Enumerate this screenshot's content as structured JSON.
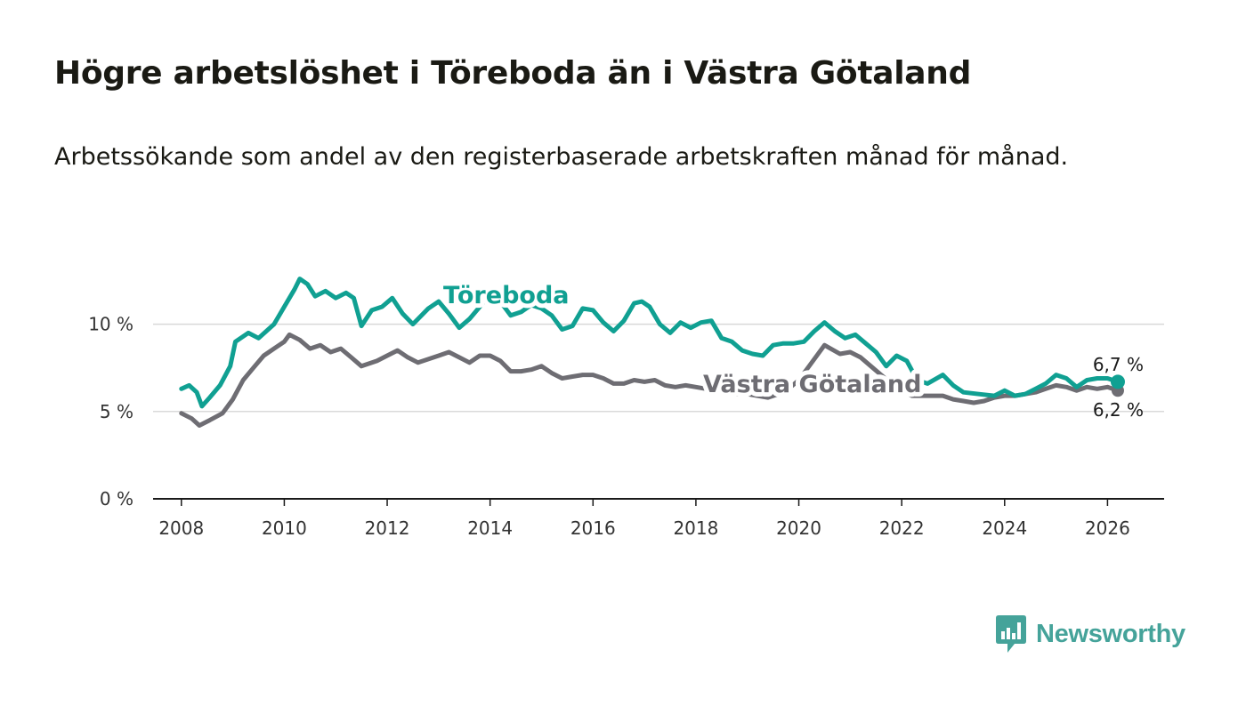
{
  "header": {
    "title": "Högre arbetslöshet i Töreboda än i Västra Götaland",
    "subtitle": "Arbetssökande som andel av den registerbaserade arbetskraften månad för månad."
  },
  "brand": {
    "name": "Newsworthy",
    "color": "#45a39a",
    "icon": "bar-chart-speech-bubble-icon"
  },
  "chart_data": {
    "type": "line",
    "title": "Högre arbetslöshet i Töreboda än i Västra Götaland",
    "subtitle": "Arbetssökande som andel av den registerbaserade arbetskraften månad för månad.",
    "xlabel": "",
    "ylabel": "",
    "xlim": [
      2007.45,
      2027.1
    ],
    "ylim": [
      0,
      13.8
    ],
    "x_ticks": [
      2008,
      2010,
      2012,
      2014,
      2016,
      2018,
      2020,
      2022,
      2024,
      2026
    ],
    "x_tick_labels": [
      "2008",
      "2010",
      "2012",
      "2014",
      "2016",
      "2018",
      "2020",
      "2022",
      "2024",
      "2026"
    ],
    "y_ticks": [
      0,
      5,
      10
    ],
    "y_tick_labels": [
      "0 %",
      "5 %",
      "10 %"
    ],
    "grid": true,
    "series": [
      {
        "name": "Töreboda",
        "color": "#10a092",
        "points": [
          [
            2008.0,
            6.3
          ],
          [
            2008.15,
            6.5
          ],
          [
            2008.3,
            6.1
          ],
          [
            2008.4,
            5.3
          ],
          [
            2008.55,
            5.8
          ],
          [
            2008.75,
            6.5
          ],
          [
            2008.95,
            7.6
          ],
          [
            2009.05,
            9.0
          ],
          [
            2009.3,
            9.5
          ],
          [
            2009.5,
            9.2
          ],
          [
            2009.8,
            10.0
          ],
          [
            2010.0,
            11.0
          ],
          [
            2010.2,
            12.0
          ],
          [
            2010.3,
            12.6
          ],
          [
            2010.45,
            12.3
          ],
          [
            2010.6,
            11.6
          ],
          [
            2010.8,
            11.9
          ],
          [
            2011.0,
            11.5
          ],
          [
            2011.2,
            11.8
          ],
          [
            2011.35,
            11.5
          ],
          [
            2011.5,
            9.9
          ],
          [
            2011.7,
            10.8
          ],
          [
            2011.9,
            11.0
          ],
          [
            2012.1,
            11.5
          ],
          [
            2012.3,
            10.6
          ],
          [
            2012.5,
            10.0
          ],
          [
            2012.8,
            10.9
          ],
          [
            2013.0,
            11.3
          ],
          [
            2013.2,
            10.6
          ],
          [
            2013.4,
            9.8
          ],
          [
            2013.6,
            10.3
          ],
          [
            2013.8,
            11.0
          ],
          [
            2014.0,
            11.8
          ],
          [
            2014.2,
            11.3
          ],
          [
            2014.4,
            10.5
          ],
          [
            2014.6,
            10.7
          ],
          [
            2014.8,
            11.1
          ],
          [
            2015.0,
            10.9
          ],
          [
            2015.2,
            10.5
          ],
          [
            2015.4,
            9.7
          ],
          [
            2015.6,
            9.9
          ],
          [
            2015.8,
            10.9
          ],
          [
            2016.0,
            10.8
          ],
          [
            2016.2,
            10.1
          ],
          [
            2016.4,
            9.6
          ],
          [
            2016.6,
            10.2
          ],
          [
            2016.8,
            11.2
          ],
          [
            2016.95,
            11.3
          ],
          [
            2017.1,
            11.0
          ],
          [
            2017.3,
            10.0
          ],
          [
            2017.5,
            9.5
          ],
          [
            2017.7,
            10.1
          ],
          [
            2017.9,
            9.8
          ],
          [
            2018.1,
            10.1
          ],
          [
            2018.3,
            10.2
          ],
          [
            2018.5,
            9.2
          ],
          [
            2018.7,
            9.0
          ],
          [
            2018.9,
            8.5
          ],
          [
            2019.1,
            8.3
          ],
          [
            2019.3,
            8.2
          ],
          [
            2019.5,
            8.8
          ],
          [
            2019.7,
            8.9
          ],
          [
            2019.9,
            8.9
          ],
          [
            2020.1,
            9.0
          ],
          [
            2020.3,
            9.6
          ],
          [
            2020.5,
            10.1
          ],
          [
            2020.7,
            9.6
          ],
          [
            2020.9,
            9.2
          ],
          [
            2021.1,
            9.4
          ],
          [
            2021.3,
            8.9
          ],
          [
            2021.5,
            8.4
          ],
          [
            2021.7,
            7.6
          ],
          [
            2021.9,
            8.2
          ],
          [
            2022.1,
            7.9
          ],
          [
            2022.3,
            6.8
          ],
          [
            2022.5,
            6.6
          ],
          [
            2022.8,
            7.1
          ],
          [
            2023.0,
            6.5
          ],
          [
            2023.2,
            6.1
          ],
          [
            2023.5,
            6.0
          ],
          [
            2023.8,
            5.9
          ],
          [
            2024.0,
            6.2
          ],
          [
            2024.2,
            5.9
          ],
          [
            2024.4,
            6.0
          ],
          [
            2024.6,
            6.3
          ],
          [
            2024.8,
            6.6
          ],
          [
            2025.0,
            7.1
          ],
          [
            2025.2,
            6.9
          ],
          [
            2025.4,
            6.4
          ],
          [
            2025.6,
            6.8
          ],
          [
            2025.8,
            6.9
          ],
          [
            2026.0,
            6.9
          ],
          [
            2026.2,
            6.7
          ]
        ]
      },
      {
        "name": "Västra Götaland",
        "color": "#6e6d73",
        "points": [
          [
            2008.0,
            4.9
          ],
          [
            2008.2,
            4.6
          ],
          [
            2008.35,
            4.2
          ],
          [
            2008.55,
            4.5
          ],
          [
            2008.8,
            4.9
          ],
          [
            2009.0,
            5.7
          ],
          [
            2009.2,
            6.8
          ],
          [
            2009.4,
            7.5
          ],
          [
            2009.6,
            8.2
          ],
          [
            2009.8,
            8.6
          ],
          [
            2010.0,
            9.0
          ],
          [
            2010.1,
            9.4
          ],
          [
            2010.3,
            9.1
          ],
          [
            2010.5,
            8.6
          ],
          [
            2010.7,
            8.8
          ],
          [
            2010.9,
            8.4
          ],
          [
            2011.1,
            8.6
          ],
          [
            2011.3,
            8.1
          ],
          [
            2011.5,
            7.6
          ],
          [
            2011.8,
            7.9
          ],
          [
            2012.0,
            8.2
          ],
          [
            2012.2,
            8.5
          ],
          [
            2012.4,
            8.1
          ],
          [
            2012.6,
            7.8
          ],
          [
            2012.8,
            8.0
          ],
          [
            2013.0,
            8.2
          ],
          [
            2013.2,
            8.4
          ],
          [
            2013.4,
            8.1
          ],
          [
            2013.6,
            7.8
          ],
          [
            2013.8,
            8.2
          ],
          [
            2014.0,
            8.2
          ],
          [
            2014.2,
            7.9
          ],
          [
            2014.4,
            7.3
          ],
          [
            2014.6,
            7.3
          ],
          [
            2014.8,
            7.4
          ],
          [
            2015.0,
            7.6
          ],
          [
            2015.2,
            7.2
          ],
          [
            2015.4,
            6.9
          ],
          [
            2015.6,
            7.0
          ],
          [
            2015.8,
            7.1
          ],
          [
            2016.0,
            7.1
          ],
          [
            2016.2,
            6.9
          ],
          [
            2016.4,
            6.6
          ],
          [
            2016.6,
            6.6
          ],
          [
            2016.8,
            6.8
          ],
          [
            2017.0,
            6.7
          ],
          [
            2017.2,
            6.8
          ],
          [
            2017.4,
            6.5
          ],
          [
            2017.6,
            6.4
          ],
          [
            2017.8,
            6.5
          ],
          [
            2018.0,
            6.4
          ],
          [
            2018.2,
            6.3
          ],
          [
            2018.4,
            6.2
          ],
          [
            2018.6,
            6.2
          ],
          [
            2018.8,
            6.0
          ],
          [
            2019.0,
            6.0
          ],
          [
            2019.2,
            5.9
          ],
          [
            2019.4,
            5.8
          ],
          [
            2019.6,
            6.0
          ],
          [
            2019.8,
            6.3
          ],
          [
            2020.0,
            6.8
          ],
          [
            2020.2,
            7.6
          ],
          [
            2020.5,
            8.8
          ],
          [
            2020.8,
            8.3
          ],
          [
            2021.0,
            8.4
          ],
          [
            2021.2,
            8.1
          ],
          [
            2021.4,
            7.6
          ],
          [
            2021.6,
            7.1
          ],
          [
            2021.8,
            6.6
          ],
          [
            2022.0,
            6.2
          ],
          [
            2022.2,
            5.9
          ],
          [
            2022.5,
            5.9
          ],
          [
            2022.8,
            5.9
          ],
          [
            2023.0,
            5.7
          ],
          [
            2023.2,
            5.6
          ],
          [
            2023.4,
            5.5
          ],
          [
            2023.6,
            5.6
          ],
          [
            2023.8,
            5.8
          ],
          [
            2024.0,
            5.9
          ],
          [
            2024.2,
            5.9
          ],
          [
            2024.4,
            6.0
          ],
          [
            2024.6,
            6.1
          ],
          [
            2024.8,
            6.3
          ],
          [
            2025.0,
            6.5
          ],
          [
            2025.2,
            6.4
          ],
          [
            2025.4,
            6.2
          ],
          [
            2025.6,
            6.4
          ],
          [
            2025.8,
            6.3
          ],
          [
            2026.0,
            6.4
          ],
          [
            2026.2,
            6.2
          ]
        ]
      }
    ],
    "annotations": {
      "toreboda_label": "Töreboda",
      "vg_label": "Västra Götaland",
      "toreboda_end_label": "6,7 %",
      "vg_end_label": "6,2 %"
    }
  }
}
